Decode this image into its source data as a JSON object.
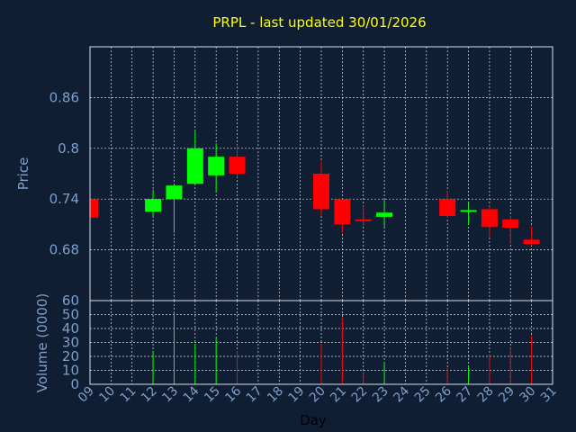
{
  "chart_data": [
    {
      "type": "candlestick",
      "title": "PRPL - last updated 30/01/2026",
      "ylabel": "Price",
      "ylim": [
        0.62,
        0.92
      ],
      "yticks": [
        "0.68",
        "0.74",
        "0.8",
        "0.86"
      ],
      "grid": true,
      "candles": [
        {
          "day": "09",
          "open": 0.74,
          "high": 0.74,
          "low": 0.718,
          "close": 0.718
        },
        {
          "day": "12",
          "open": 0.725,
          "high": 0.751,
          "low": 0.72,
          "close": 0.74
        },
        {
          "day": "13",
          "open": 0.74,
          "high": 0.756,
          "low": 0.7,
          "close": 0.756
        },
        {
          "day": "14",
          "open": 0.758,
          "high": 0.82,
          "low": 0.758,
          "close": 0.8
        },
        {
          "day": "15",
          "open": 0.768,
          "high": 0.806,
          "low": 0.748,
          "close": 0.79
        },
        {
          "day": "16",
          "open": 0.79,
          "high": 0.804,
          "low": 0.766,
          "close": 0.77
        },
        {
          "day": "20",
          "open": 0.77,
          "high": 0.785,
          "low": 0.72,
          "close": 0.728
        },
        {
          "day": "21",
          "open": 0.74,
          "high": 0.74,
          "low": 0.7,
          "close": 0.71
        },
        {
          "day": "22",
          "open": 0.716,
          "high": 0.732,
          "low": 0.708,
          "close": 0.715
        },
        {
          "day": "23",
          "open": 0.719,
          "high": 0.74,
          "low": 0.707,
          "close": 0.724
        },
        {
          "day": "26",
          "open": 0.74,
          "high": 0.75,
          "low": 0.718,
          "close": 0.72
        },
        {
          "day": "27",
          "open": 0.725,
          "high": 0.735,
          "low": 0.71,
          "close": 0.727
        },
        {
          "day": "28",
          "open": 0.728,
          "high": 0.732,
          "low": 0.694,
          "close": 0.707
        },
        {
          "day": "29",
          "open": 0.716,
          "high": 0.72,
          "low": 0.687,
          "close": 0.706
        },
        {
          "day": "30",
          "open": 0.692,
          "high": 0.708,
          "low": 0.685,
          "close": 0.687
        }
      ]
    },
    {
      "type": "bar",
      "ylabel": "Volume (0000)",
      "xlabel": "Day",
      "ylim": [
        0,
        60
      ],
      "yticks": [
        "0",
        "10",
        "20",
        "30",
        "40",
        "50",
        "60"
      ],
      "categories": [
        "09",
        "10",
        "11",
        "12",
        "13",
        "14",
        "15",
        "16",
        "17",
        "18",
        "19",
        "20",
        "21",
        "22",
        "23",
        "24",
        "25",
        "26",
        "27",
        "28",
        "29",
        "30",
        "31"
      ],
      "values": [
        0,
        0,
        0,
        24,
        52,
        29,
        33,
        24,
        0,
        0,
        0,
        29,
        48,
        9,
        16,
        0,
        0,
        12,
        13,
        21,
        26,
        35,
        0
      ]
    }
  ],
  "colors": {
    "background": "#0f1e33",
    "up": "#00ff00",
    "down": "#ff0000",
    "title": "#ffff00",
    "axis_text": "#7f9fc8",
    "grid": "#d8dde6",
    "frame": "#d8dde6"
  }
}
